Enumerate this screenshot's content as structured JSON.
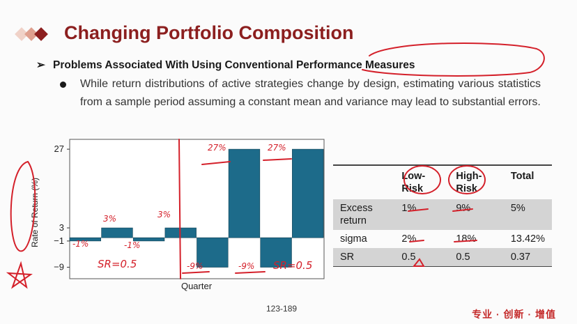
{
  "slide": {
    "title": "Changing Portfolio Composition",
    "bullet": "Problems Associated With Using Conventional Performance Measures",
    "paragraph": "While return distributions of active strategies change by design, estimating various statistics from a sample period assuming a constant mean and variance may lead to substantial errors.",
    "page_number": "123-189",
    "footer_tag": "专业 · 创新 · 增值"
  },
  "chart_data": {
    "type": "bar",
    "ylabel": "Rate of Return (%)",
    "xlabel": "Quarter",
    "yticks": [
      27,
      3,
      -1,
      -9
    ],
    "ylim": [
      -12.5,
      30
    ],
    "bar_color": "#1d6b8a",
    "values": [
      -1,
      3,
      -1,
      3,
      -9,
      27,
      -9,
      27
    ]
  },
  "table": {
    "headers": [
      "",
      "Low-Risk",
      "High-Risk",
      "Total"
    ],
    "rows": [
      {
        "label": "Excess return",
        "low": "1%",
        "high": "9%",
        "total": "5%"
      },
      {
        "label": "sigma",
        "low": "2%",
        "high": "18%",
        "total": "13.42%"
      },
      {
        "label": "SR",
        "low": "0.5",
        "high": "0.5",
        "total": "0.37"
      }
    ]
  },
  "annotations": {
    "ink_color": "#d4202a",
    "bar_labels": [
      "-1%",
      "3%",
      "-1%",
      "3%",
      "-9%",
      "27%",
      "-9%",
      "27%"
    ],
    "sr_left": "SR=0.5",
    "sr_right": "SR=0.5"
  }
}
